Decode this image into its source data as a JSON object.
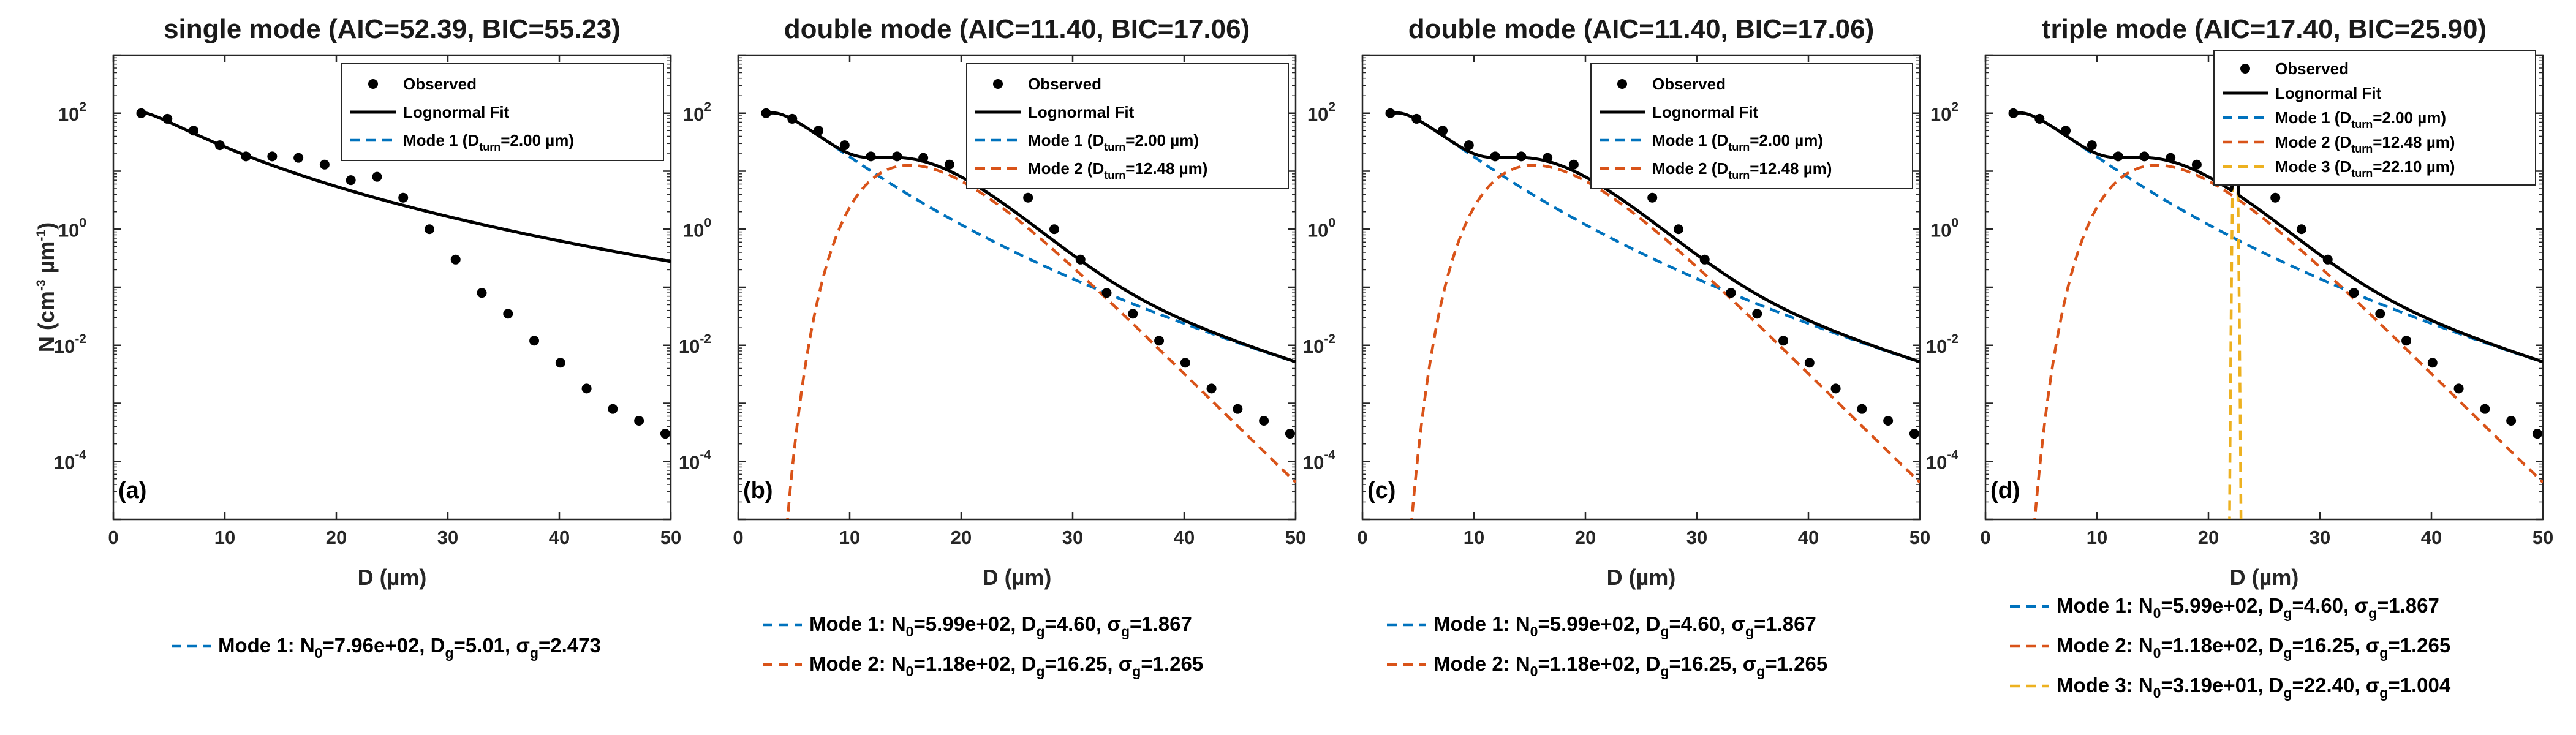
{
  "chart_data": [
    {
      "type": "line",
      "panel_label": "(a)",
      "title": "single mode (AIC=52.39, BIC=55.23)",
      "xlabel": "D (µm)",
      "ylabel": "N (cm-3 µm-1)",
      "xlim": [
        0,
        50
      ],
      "ylim": [
        1e-05,
        1000
      ],
      "yscale": "log",
      "x_ticks": [
        "0",
        "10",
        "20",
        "30",
        "40",
        "50"
      ],
      "y_ticks": [
        2,
        0,
        -2,
        -4
      ],
      "legend": {
        "position": "top-right",
        "observed": "Observed",
        "fit": "Lognormal Fit",
        "modes": [
          "Mode 1 (D=2.00 µm)"
        ]
      },
      "observed": {
        "x": [
          2.5,
          4.85,
          7.2,
          9.55,
          11.9,
          14.25,
          16.6,
          18.95,
          21.3,
          23.65,
          26.0,
          28.35,
          30.7,
          33.05,
          35.4,
          37.75,
          40.1,
          42.45,
          44.8,
          47.15,
          49.5
        ],
        "y": [
          100,
          80,
          50,
          28,
          18,
          18,
          17,
          13,
          7,
          8,
          3.5,
          1.0,
          0.3,
          0.08,
          0.035,
          0.012,
          0.005,
          0.0018,
          0.0008,
          0.0005,
          0.0003
        ]
      },
      "modes": [
        {
          "name": "Mode 1",
          "N0_label": "7.96e+02",
          "N0": 796,
          "Dg": 5.01,
          "sigma_g": 2.473,
          "D_turn": 2.0,
          "color": "#0072BD"
        }
      ],
      "fit_color": "#000000"
    },
    {
      "type": "line",
      "panel_label": "(b)",
      "title": "double mode (AIC=11.40, BIC=17.06)",
      "xlabel": "D (µm)",
      "xlim": [
        0,
        50
      ],
      "ylim": [
        1e-05,
        1000
      ],
      "yscale": "log",
      "x_ticks": [
        "0",
        "10",
        "20",
        "30",
        "40",
        "50"
      ],
      "y_ticks": [
        2,
        0,
        -2,
        -4
      ],
      "legend": {
        "position": "top-right",
        "observed": "Observed",
        "fit": "Lognormal Fit",
        "modes": [
          "Mode 1 (D=2.00 µm)",
          "Mode 2 (D=12.48 µm)"
        ]
      },
      "observed": {
        "x": [
          2.5,
          4.85,
          7.2,
          9.55,
          11.9,
          14.25,
          16.6,
          18.95,
          21.3,
          23.65,
          26.0,
          28.35,
          30.7,
          33.05,
          35.4,
          37.75,
          40.1,
          42.45,
          44.8,
          47.15,
          49.5
        ],
        "y": [
          100,
          80,
          50,
          28,
          18,
          18,
          17,
          13,
          7,
          8,
          3.5,
          1.0,
          0.3,
          0.08,
          0.035,
          0.012,
          0.005,
          0.0018,
          0.0008,
          0.0005,
          0.0003
        ]
      },
      "modes": [
        {
          "name": "Mode 1",
          "N0_label": "5.99e+02",
          "N0": 599,
          "Dg": 4.6,
          "sigma_g": 1.867,
          "D_turn": 2.0,
          "color": "#0072BD"
        },
        {
          "name": "Mode 2",
          "N0_label": "1.18e+02",
          "N0": 118,
          "Dg": 16.25,
          "sigma_g": 1.265,
          "D_turn": 12.48,
          "color": "#D95319"
        }
      ],
      "fit_color": "#000000"
    },
    {
      "type": "line",
      "panel_label": "(c)",
      "title": "double mode (AIC=11.40, BIC=17.06)",
      "xlabel": "D (µm)",
      "xlim": [
        0,
        50
      ],
      "ylim": [
        1e-05,
        1000
      ],
      "yscale": "log",
      "x_ticks": [
        "0",
        "10",
        "20",
        "30",
        "40",
        "50"
      ],
      "y_ticks": [
        2,
        0,
        -2,
        -4
      ],
      "legend": {
        "position": "top-right",
        "observed": "Observed",
        "fit": "Lognormal Fit",
        "modes": [
          "Mode 1 (D=2.00 µm)",
          "Mode 2 (D=12.48 µm)"
        ]
      },
      "observed": {
        "x": [
          2.5,
          4.85,
          7.2,
          9.55,
          11.9,
          14.25,
          16.6,
          18.95,
          21.3,
          23.65,
          26.0,
          28.35,
          30.7,
          33.05,
          35.4,
          37.75,
          40.1,
          42.45,
          44.8,
          47.15,
          49.5
        ],
        "y": [
          100,
          80,
          50,
          28,
          18,
          18,
          17,
          13,
          7,
          8,
          3.5,
          1.0,
          0.3,
          0.08,
          0.035,
          0.012,
          0.005,
          0.0018,
          0.0008,
          0.0005,
          0.0003
        ]
      },
      "modes": [
        {
          "name": "Mode 1",
          "N0_label": "5.99e+02",
          "N0": 599,
          "Dg": 4.6,
          "sigma_g": 1.867,
          "D_turn": 2.0,
          "color": "#0072BD"
        },
        {
          "name": "Mode 2",
          "N0_label": "1.18e+02",
          "N0": 118,
          "Dg": 16.25,
          "sigma_g": 1.265,
          "D_turn": 12.48,
          "color": "#D95319"
        }
      ],
      "fit_color": "#000000"
    },
    {
      "type": "line",
      "panel_label": "(d)",
      "title": "triple mode (AIC=17.40, BIC=25.90)",
      "xlabel": "D (µm)",
      "xlim": [
        0,
        50
      ],
      "ylim": [
        1e-05,
        1000
      ],
      "yscale": "log",
      "x_ticks": [
        "0",
        "10",
        "20",
        "30",
        "40",
        "50"
      ],
      "y_ticks": [
        2,
        0,
        -2,
        -4
      ],
      "legend": {
        "position": "top-right",
        "observed": "Observed",
        "fit": "Lognormal Fit",
        "modes": [
          "Mode 1 (D=2.00 µm)",
          "Mode 2 (D=12.48 µm)",
          "Mode 3 (D=22.10 µm)"
        ]
      },
      "observed": {
        "x": [
          2.5,
          4.85,
          7.2,
          9.55,
          11.9,
          14.25,
          16.6,
          18.95,
          21.3,
          23.65,
          26.0,
          28.35,
          30.7,
          33.05,
          35.4,
          37.75,
          40.1,
          42.45,
          44.8,
          47.15,
          49.5
        ],
        "y": [
          100,
          80,
          50,
          28,
          18,
          18,
          17,
          13,
          7,
          8,
          3.5,
          1.0,
          0.3,
          0.08,
          0.035,
          0.012,
          0.005,
          0.0018,
          0.0008,
          0.0005,
          0.0003
        ]
      },
      "modes": [
        {
          "name": "Mode 1",
          "N0_label": "5.99e+02",
          "N0": 599,
          "Dg": 4.6,
          "sigma_g": 1.867,
          "D_turn": 2.0,
          "color": "#0072BD"
        },
        {
          "name": "Mode 2",
          "N0_label": "1.18e+02",
          "N0": 118,
          "Dg": 16.25,
          "sigma_g": 1.265,
          "D_turn": 12.48,
          "color": "#D95319"
        },
        {
          "name": "Mode 3",
          "N0_label": "3.19e+01",
          "N0": 31.9,
          "Dg": 22.4,
          "sigma_g": 1.004,
          "D_turn": 22.1,
          "color": "#EDB120"
        }
      ],
      "fit_color": "#000000"
    }
  ]
}
